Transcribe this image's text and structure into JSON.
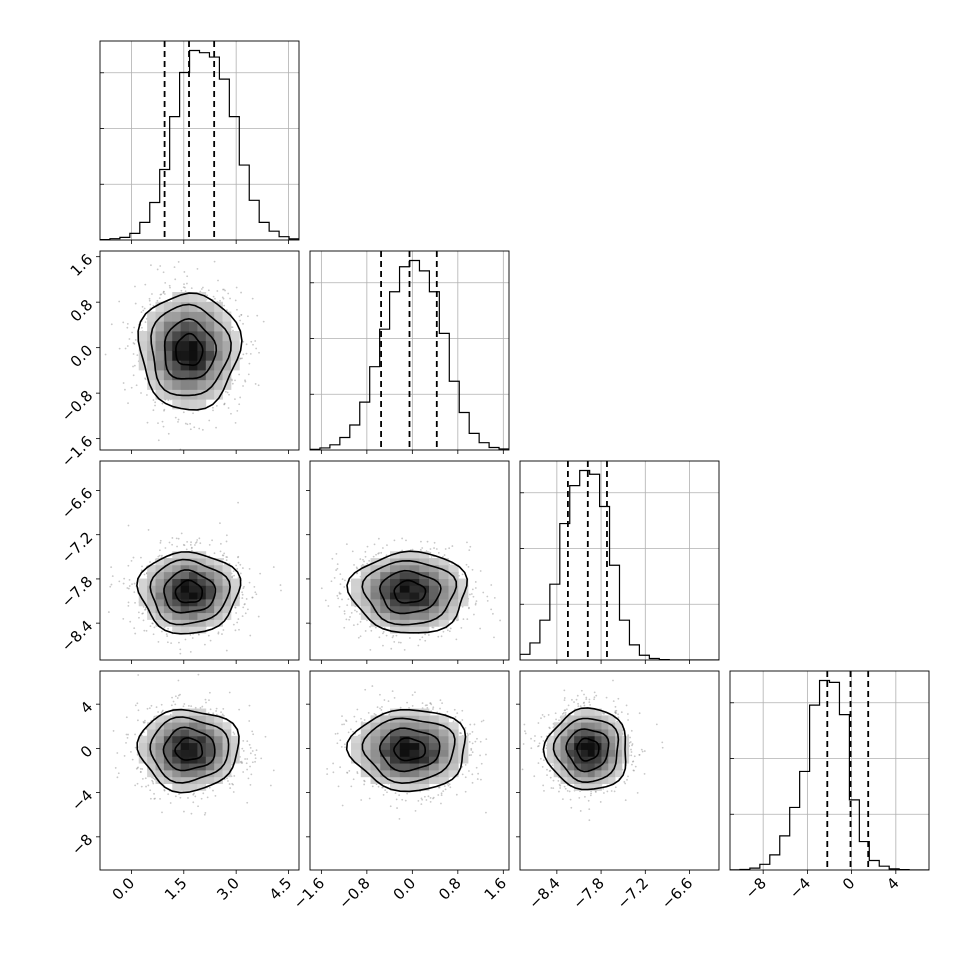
{
  "chart_data": {
    "type": "corner",
    "title": "",
    "parameters": [
      {
        "label": "",
        "range": [
          -0.9,
          4.8
        ],
        "ticks": [
          0.0,
          1.5,
          3.0,
          4.5
        ],
        "tick_labels": [
          "0.0",
          "1.5",
          "3.0",
          "4.5"
        ],
        "quantiles": [
          0.95,
          1.65,
          2.37
        ],
        "peak": 1.65,
        "sigma": 0.7
      },
      {
        "label": "",
        "range": [
          -1.8,
          1.7
        ],
        "ticks": [
          -1.6,
          -0.8,
          0.0,
          0.8,
          1.6
        ],
        "tick_labels": [
          "−1.6",
          "−0.8",
          "0.0",
          "0.8",
          "1.6"
        ],
        "quantiles": [
          -0.55,
          -0.05,
          0.43
        ],
        "peak": -0.05,
        "sigma": 0.5
      },
      {
        "label": "",
        "range": [
          -8.9,
          -6.2
        ],
        "ticks": [
          -8.4,
          -7.8,
          -7.2,
          -6.6
        ],
        "tick_labels": [
          "−8.4",
          "−7.8",
          "−7.2",
          "−6.6"
        ],
        "quantiles": [
          -8.25,
          -7.98,
          -7.72
        ],
        "peak": -7.98,
        "sigma": 0.27
      },
      {
        "label": "",
        "range": [
          -11.0,
          7.0
        ],
        "ticks": [
          -8,
          -4,
          0,
          4
        ],
        "tick_labels": [
          "−8",
          "−4",
          "0",
          "4"
        ],
        "quantiles": [
          -2.2,
          -0.1,
          1.5
        ],
        "peak": -0.1,
        "sigma": 1.8
      }
    ],
    "histograms": [
      {
        "bins_start": -0.9,
        "bin_width": 0.285,
        "counts": [
          2,
          6,
          12,
          30,
          80,
          170,
          320,
          560,
          760,
          860,
          850,
          830,
          730,
          560,
          340,
          180,
          80,
          40,
          15,
          5
        ]
      },
      {
        "bins_start": -1.8,
        "bin_width": 0.175,
        "counts": [
          3,
          10,
          25,
          60,
          120,
          230,
          400,
          580,
          760,
          880,
          910,
          860,
          760,
          560,
          330,
          180,
          80,
          35,
          12,
          5
        ]
      },
      {
        "bins_start": -8.9,
        "bin_width": 0.135,
        "counts": [
          30,
          90,
          210,
          400,
          720,
          920,
          1000,
          980,
          810,
          500,
          210,
          80,
          25,
          8,
          2,
          0,
          0,
          0,
          0,
          0
        ]
      },
      {
        "bins_start": -11.0,
        "bin_width": 0.9,
        "counts": [
          1,
          3,
          10,
          30,
          80,
          180,
          330,
          520,
          870,
          1000,
          990,
          820,
          370,
          150,
          50,
          20,
          6,
          2,
          0,
          0
        ]
      }
    ],
    "grid": true,
    "legend": "none"
  }
}
